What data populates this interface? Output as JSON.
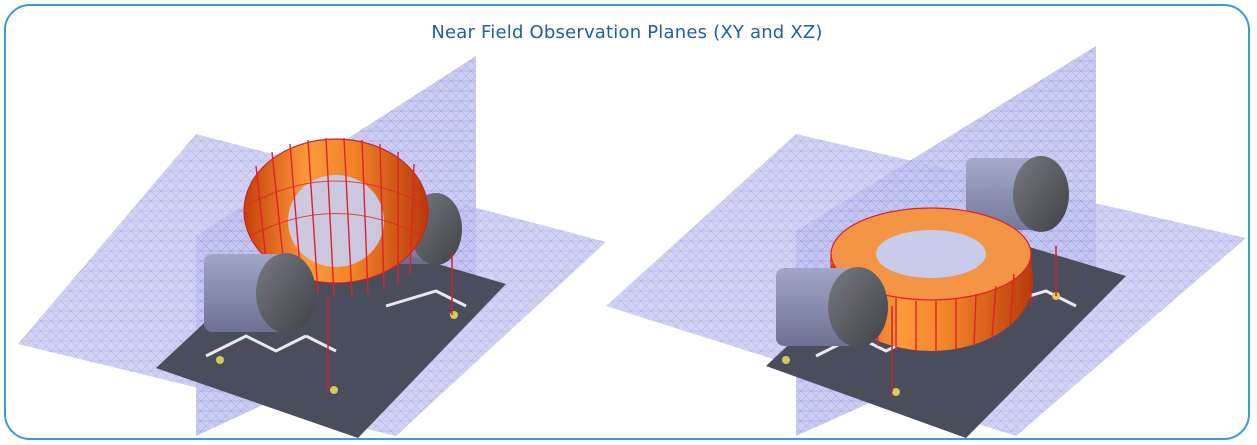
{
  "figure": {
    "title": "Near Field Observation Planes (XY and XZ)"
  },
  "colors": {
    "border": "#3c9bd6",
    "title": "#1f5fa6",
    "mesh_plane": "#b7b8ea",
    "mesh_line": "#8b8fd8",
    "toroid": "#f07a1a",
    "winding": "#e0202a",
    "board": "#4a4d5c",
    "capacitor_body": "#8a8fb0",
    "capacitor_cap": "#5a5c60"
  },
  "icons": [
    "left-model",
    "right-model"
  ]
}
